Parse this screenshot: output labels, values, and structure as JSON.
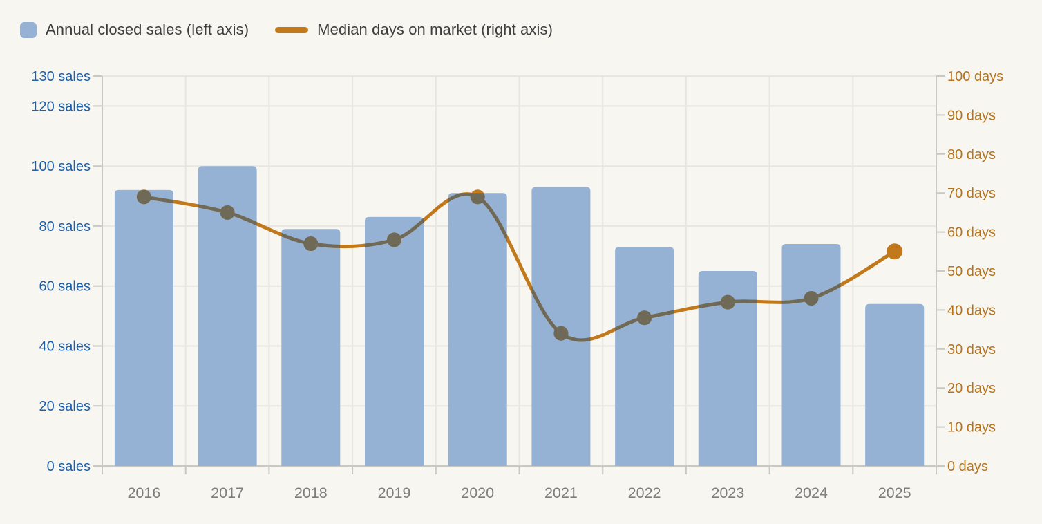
{
  "page": {
    "background": "#F7F6F1"
  },
  "legend": {
    "text_color": "#3E3E3E",
    "items": [
      {
        "label": "Annual closed sales (left axis)",
        "marker": "square",
        "color": "#95B1D3"
      },
      {
        "label": "Median days on market (right axis)",
        "marker": "line",
        "color": "#C1791C"
      }
    ]
  },
  "chart_data": {
    "type": "combo-bar-line",
    "categories": [
      "2016",
      "2017",
      "2018",
      "2019",
      "2020",
      "2021",
      "2022",
      "2023",
      "2024",
      "2025"
    ],
    "series": [
      {
        "name": "Annual closed sales",
        "type": "bar",
        "axis": "left",
        "color": "#95B1D3",
        "values": [
          92,
          100,
          79,
          83,
          91,
          93,
          73,
          65,
          74,
          54
        ]
      },
      {
        "name": "Median days on market",
        "type": "line",
        "axis": "right",
        "color": "#C1791C",
        "marker_color_over_bars": "#6F6A57",
        "values": [
          69,
          65,
          57,
          58,
          69,
          34,
          38,
          42,
          43,
          55
        ]
      }
    ],
    "left_axis": {
      "ticks": [
        0,
        20,
        40,
        60,
        80,
        100,
        120,
        130
      ],
      "suffix": " sales",
      "range": [
        0,
        130
      ],
      "label_color": "#1D5FA8"
    },
    "right_axis": {
      "ticks": [
        0,
        10,
        20,
        30,
        40,
        50,
        60,
        70,
        80,
        90,
        100
      ],
      "suffix": " days",
      "range": [
        0,
        100
      ],
      "label_color": "#B5731C"
    },
    "x_axis": {
      "label_color": "#7E7D7B"
    },
    "grid": {
      "show": true,
      "line_color": "#E7E6E1",
      "axis_color": "#C9C8C2"
    },
    "legend_position": "top-left"
  }
}
